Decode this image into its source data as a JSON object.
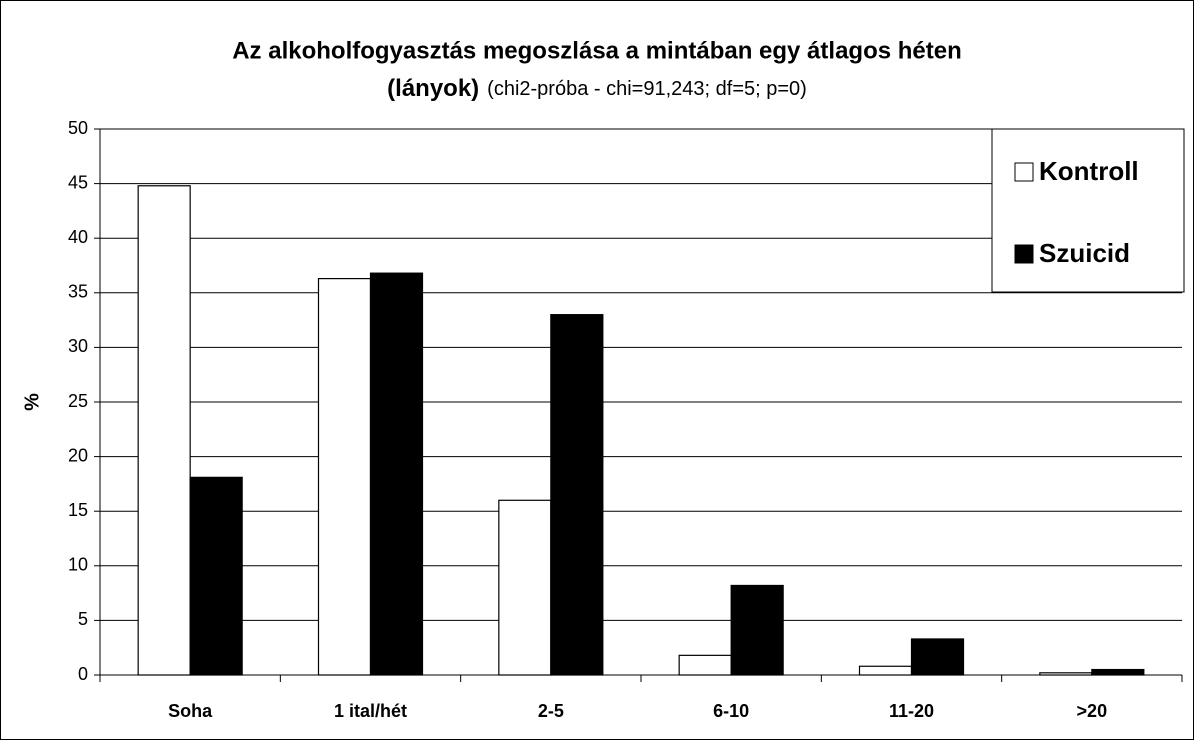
{
  "chart_data": {
    "type": "bar",
    "title": [
      "Az alkoholfogyasztás megoszlása a mintában egy átlagos héten",
      "(lányok)"
    ],
    "subtitle": "(chi2-próba - chi=91,243; df=5; p=0)",
    "y_label": "%",
    "categories": [
      "Soha",
      "1 ital/hét",
      "2-5",
      "6-10",
      "11-20",
      ">20"
    ],
    "series": [
      {
        "name": "Kontroll",
        "color": "#ffffff",
        "values": [
          44.8,
          36.3,
          16.0,
          1.8,
          0.8,
          0.2
        ]
      },
      {
        "name": "Szuicid",
        "color": "#000000",
        "values": [
          18.1,
          36.8,
          33.0,
          8.2,
          3.3,
          0.5
        ]
      }
    ],
    "ylim": [
      0,
      50
    ],
    "yticks": [
      0,
      5,
      10,
      15,
      20,
      25,
      30,
      35,
      40,
      45,
      50
    ],
    "grid": true,
    "legend": "top-right"
  }
}
